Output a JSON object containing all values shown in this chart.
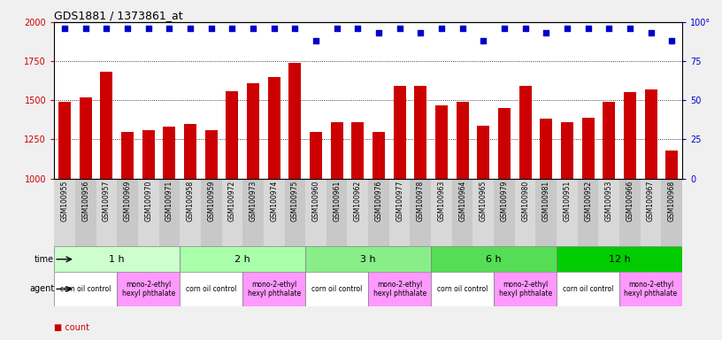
{
  "title": "GDS1881 / 1373861_at",
  "samples": [
    "GSM100955",
    "GSM100956",
    "GSM100957",
    "GSM100969",
    "GSM100970",
    "GSM100971",
    "GSM100958",
    "GSM100959",
    "GSM100972",
    "GSM100973",
    "GSM100974",
    "GSM100975",
    "GSM100960",
    "GSM100961",
    "GSM100962",
    "GSM100976",
    "GSM100977",
    "GSM100978",
    "GSM100963",
    "GSM100964",
    "GSM100965",
    "GSM100979",
    "GSM100980",
    "GSM100981",
    "GSM100951",
    "GSM100952",
    "GSM100953",
    "GSM100966",
    "GSM100967",
    "GSM100968"
  ],
  "counts": [
    1490,
    1520,
    1680,
    1300,
    1310,
    1330,
    1350,
    1310,
    1560,
    1610,
    1650,
    1740,
    1300,
    1360,
    1360,
    1300,
    1590,
    1590,
    1470,
    1490,
    1340,
    1450,
    1590,
    1380,
    1360,
    1390,
    1490,
    1550,
    1570,
    1180
  ],
  "percentile_ranks": [
    96,
    96,
    96,
    96,
    96,
    96,
    96,
    96,
    96,
    96,
    96,
    96,
    88,
    96,
    96,
    93,
    96,
    93,
    96,
    96,
    88,
    96,
    96,
    93,
    96,
    96,
    96,
    96,
    93,
    88
  ],
  "time_groups": [
    {
      "label": "1 h",
      "start": 0,
      "end": 6,
      "color": "#ccffcc"
    },
    {
      "label": "2 h",
      "start": 6,
      "end": 12,
      "color": "#aaffaa"
    },
    {
      "label": "3 h",
      "start": 12,
      "end": 18,
      "color": "#88ee88"
    },
    {
      "label": "6 h",
      "start": 18,
      "end": 24,
      "color": "#55dd55"
    },
    {
      "label": "12 h",
      "start": 24,
      "end": 30,
      "color": "#00cc00"
    }
  ],
  "agent_groups": [
    {
      "label": "corn oil control",
      "start": 0,
      "end": 3,
      "color": "#ff99ff"
    },
    {
      "label": "mono-2-ethyl\nhexyl phthalate",
      "start": 3,
      "end": 6,
      "color": "#ff99ff"
    },
    {
      "label": "corn oil control",
      "start": 6,
      "end": 9,
      "color": "#ff99ff"
    },
    {
      "label": "mono-2-ethyl\nhexyl phthalate",
      "start": 9,
      "end": 12,
      "color": "#ff99ff"
    },
    {
      "label": "corn oil control",
      "start": 12,
      "end": 15,
      "color": "#ff99ff"
    },
    {
      "label": "mono-2-ethyl\nhexyl phthalate",
      "start": 15,
      "end": 18,
      "color": "#ff99ff"
    },
    {
      "label": "corn oil control",
      "start": 18,
      "end": 21,
      "color": "#ff99ff"
    },
    {
      "label": "mono-2-ethyl\nhexyl phthalate",
      "start": 21,
      "end": 24,
      "color": "#ff99ff"
    },
    {
      "label": "corn oil control",
      "start": 24,
      "end": 27,
      "color": "#ff99ff"
    },
    {
      "label": "mono-2-ethyl\nhexyl phthalate",
      "start": 27,
      "end": 30,
      "color": "#ff99ff"
    }
  ],
  "agent_colors": [
    "#ffffff",
    "#ff99ff",
    "#ffffff",
    "#ff99ff",
    "#ffffff",
    "#ff99ff",
    "#ffffff",
    "#ff99ff",
    "#ffffff",
    "#ff99ff"
  ],
  "bar_color": "#cc0000",
  "dot_color": "#0000cc",
  "ylim_left": [
    1000,
    2000
  ],
  "ylim_right": [
    0,
    100
  ],
  "yticks_left": [
    1000,
    1250,
    1500,
    1750,
    2000
  ],
  "yticks_right": [
    0,
    25,
    50,
    75,
    100
  ],
  "bar_width": 0.6,
  "background_color": "#f0f0f0",
  "plot_bg_color": "#ffffff",
  "col_colors_even": "#d8d8d8",
  "col_colors_odd": "#c8c8c8"
}
